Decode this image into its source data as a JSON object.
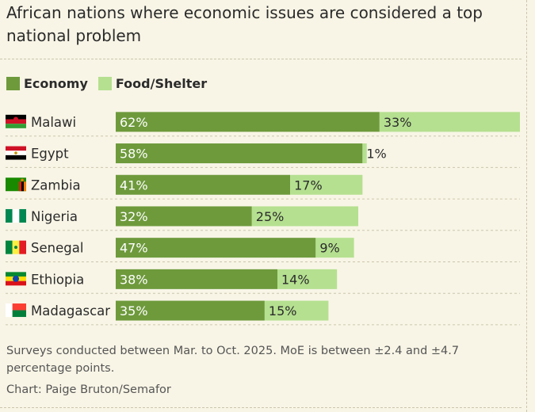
{
  "title": "African nations where economic issues are considered a top national problem",
  "footnote": "Surveys conducted between Mar. to Oct. 2025. MoE is between ±2.4 and ±4.7 percentage points.",
  "credit": "Chart: Paige Bruton/Semafor",
  "colors": {
    "economy": "#6e9a3c",
    "food": "#b5e090",
    "background": "#f8f5e6",
    "divider": "#cbc6ad"
  },
  "chart_data": {
    "type": "bar",
    "orientation": "horizontal",
    "stacked": true,
    "categories": [
      "Malawi",
      "Egypt",
      "Zambia",
      "Nigeria",
      "Senegal",
      "Ethiopia",
      "Madagascar"
    ],
    "category_icons": [
      "flag-malawi",
      "flag-egypt",
      "flag-zambia",
      "flag-nigeria",
      "flag-senegal",
      "flag-ethiopia",
      "flag-madagascar"
    ],
    "series": [
      {
        "name": "Economy",
        "color": "#6e9a3c",
        "values": [
          62,
          58,
          41,
          32,
          47,
          38,
          35
        ],
        "labels": [
          "62%",
          "58%",
          "41%",
          "32%",
          "47%",
          "38%",
          "35%"
        ]
      },
      {
        "name": "Food/Shelter",
        "color": "#b5e090",
        "values": [
          33,
          1,
          17,
          25,
          9,
          14,
          15
        ],
        "labels": [
          "33%",
          "1%",
          "17%",
          "25%",
          "9%",
          "14%",
          "15%"
        ]
      }
    ],
    "xlim": [
      0,
      95
    ],
    "legend_position": "top-left",
    "grid": false
  }
}
